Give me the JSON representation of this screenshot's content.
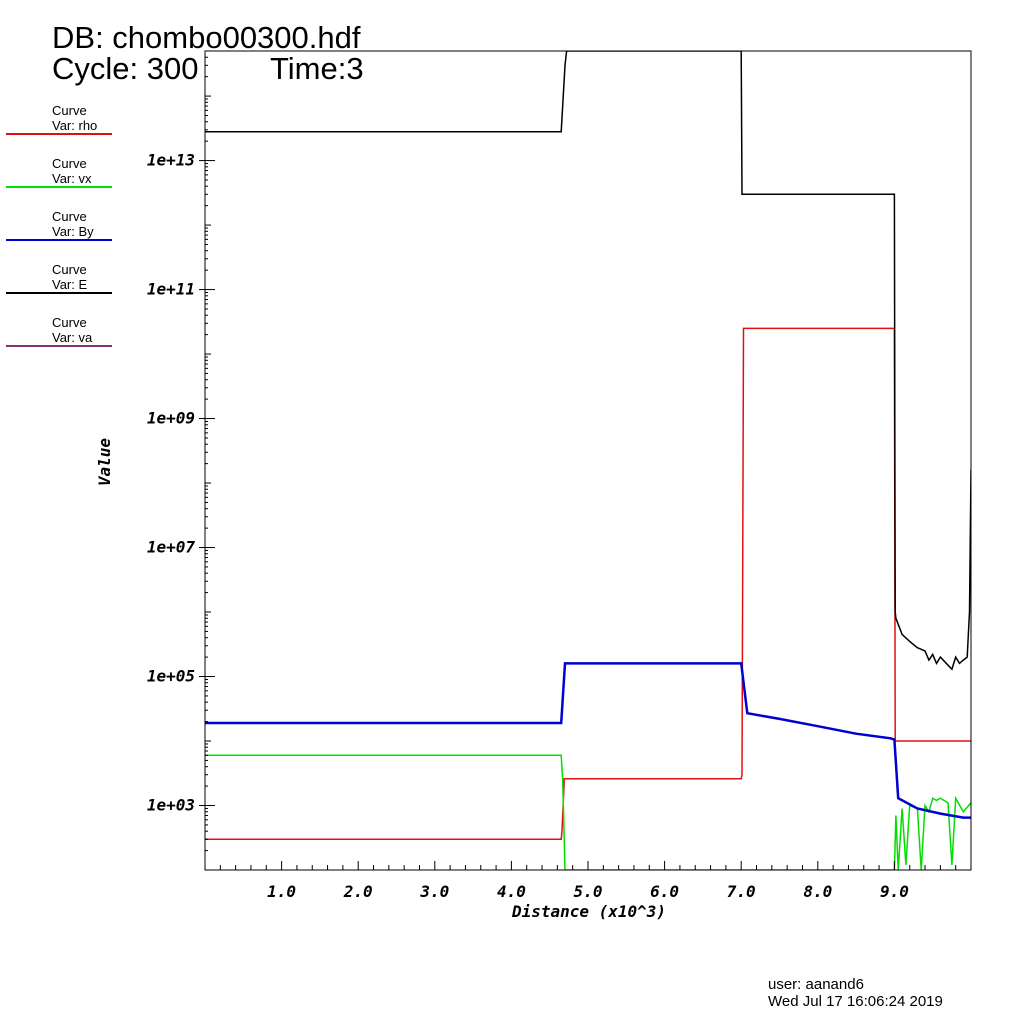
{
  "header": {
    "db": "DB: chombo00300.hdf",
    "cycle": "Cycle: 300",
    "time": "Time:3"
  },
  "legend": [
    {
      "line1": "Curve",
      "line2": "Var: rho",
      "color": "#e01010"
    },
    {
      "line1": "Curve",
      "line2": "Var: vx",
      "color": "#00e000"
    },
    {
      "line1": "Curve",
      "line2": "Var: By",
      "color": "#0000d0"
    },
    {
      "line1": "Curve",
      "line2": "Var: E",
      "color": "#000000"
    },
    {
      "line1": "Curve",
      "line2": "Var: va",
      "color": "#8a3070"
    }
  ],
  "footer": {
    "user": "user: aanand6",
    "date": "Wed Jul 17 16:06:24 2019"
  },
  "chart_data": {
    "type": "line",
    "xlabel": "Distance (x10^3)",
    "ylabel": "Value",
    "xlim": [
      0,
      10
    ],
    "yscale": "log",
    "ylim": [
      100,
      500000000000000.0
    ],
    "xticks": [
      "1.0",
      "2.0",
      "3.0",
      "4.0",
      "5.0",
      "6.0",
      "7.0",
      "8.0",
      "9.0"
    ],
    "yticks": [
      "1e+03",
      "1e+05",
      "1e+07",
      "1e+09",
      "1e+11",
      "1e+13"
    ],
    "series": [
      {
        "name": "Var: rho",
        "color": "#e01010",
        "x": [
          0,
          4.65,
          4.66,
          4.69,
          7.0,
          7.01,
          7.03,
          9.0,
          9.01,
          10
        ],
        "y": [
          300,
          300,
          400,
          2600,
          2600,
          3000,
          25000000000.0,
          25000000000.0,
          10000.0,
          10000.0
        ]
      },
      {
        "name": "Var: vx",
        "color": "#00e000",
        "x": [
          0,
          4.65,
          4.67,
          4.7,
          9.0,
          9.02,
          9.05,
          9.1,
          9.15,
          9.2,
          9.3,
          9.35,
          9.4,
          9.45,
          9.5,
          9.55,
          9.6,
          9.7,
          9.75,
          9.8,
          9.9,
          10
        ],
        "y": [
          6000,
          6000,
          2500,
          100,
          100,
          700,
          100,
          900,
          120,
          1000,
          900,
          100,
          1000,
          800,
          1300,
          1200,
          1300,
          1100,
          120,
          1300,
          800,
          1100
        ]
      },
      {
        "name": "Var: By",
        "color": "#0000d0",
        "x": [
          0,
          4.65,
          4.7,
          7.0,
          7.08,
          7.5,
          8.0,
          8.5,
          8.95,
          9.0,
          9.05,
          9.3,
          9.6,
          9.9,
          10
        ],
        "y": [
          19000,
          19000,
          160000,
          160000,
          27000,
          22000,
          17000,
          13000,
          11000,
          10500,
          1300,
          900,
          750,
          650,
          650
        ]
      },
      {
        "name": "Var: E",
        "color": "#000000",
        "x": [
          0,
          4.65,
          4.7,
          4.72,
          7.0,
          7.01,
          9.0,
          9.005,
          9.01,
          9.02,
          9.1,
          9.2,
          9.3,
          9.4,
          9.45,
          9.5,
          9.55,
          9.6,
          9.7,
          9.75,
          9.8,
          9.85,
          9.9,
          9.95,
          9.98,
          10
        ],
        "y": [
          28000000000000.0,
          28000000000000.0,
          300000000000000.0,
          500000000000000.0,
          500000000000000.0,
          3000000000000.0,
          3000000000000.0,
          1000000000.0,
          1000000.0,
          800000.0,
          450000.0,
          350000.0,
          280000.0,
          250000.0,
          180000.0,
          220000.0,
          160000.0,
          200000.0,
          150000.0,
          130000.0,
          200000.0,
          160000.0,
          180000.0,
          200000.0,
          1000000.0,
          160000000.0
        ]
      },
      {
        "name": "Var: va",
        "color": "#8a3070",
        "x": [],
        "y": []
      }
    ]
  }
}
